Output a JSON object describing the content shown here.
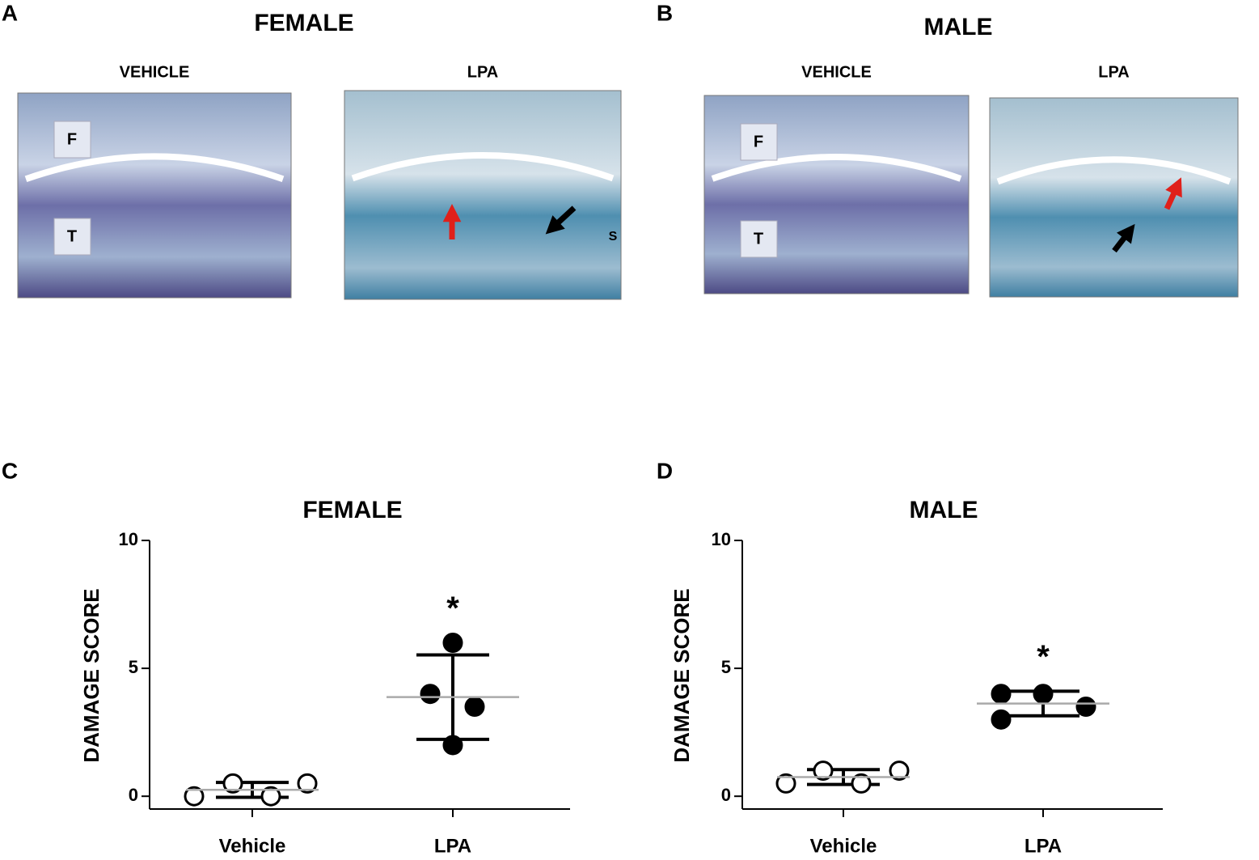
{
  "panel_labels": [
    "A",
    "B",
    "C",
    "D"
  ],
  "histology": [
    {
      "title": "FEMALE",
      "images": [
        {
          "label": "VEHICLE",
          "marks": [
            "F",
            "T"
          ]
        },
        {
          "label": "LPA",
          "marks": [
            "S"
          ]
        }
      ]
    },
    {
      "title": "MALE",
      "images": [
        {
          "label": "VEHICLE",
          "marks": [
            "F",
            "T"
          ]
        },
        {
          "label": "LPA",
          "marks": []
        }
      ]
    }
  ],
  "chart_data": [
    {
      "type": "dot",
      "title": "FEMALE",
      "y_label": "DAMAGE SCORE",
      "categories": [
        "Vehicle",
        "LPA"
      ],
      "groups": [
        {
          "values": [
            0,
            0.5,
            0,
            0.5
          ],
          "mean": 0.25,
          "sd": 0.29,
          "filled": false
        },
        {
          "values": [
            6,
            4,
            3.5,
            2
          ],
          "mean": 3.875,
          "sd": 1.65,
          "filled": true
        }
      ],
      "annotation": "*",
      "ylim": [
        -0.5,
        10
      ],
      "yticks": [
        0,
        5,
        10
      ],
      "color": "#000000",
      "mean_color": "#aaaaaa"
    },
    {
      "type": "dot",
      "title": "MALE",
      "y_label": "DAMAGE SCORE",
      "categories": [
        "Vehicle",
        "LPA"
      ],
      "groups": [
        {
          "values": [
            0.5,
            1,
            0.5,
            1
          ],
          "mean": 0.75,
          "sd": 0.29,
          "filled": false
        },
        {
          "values": [
            4,
            3,
            4,
            3.5
          ],
          "mean": 3.625,
          "sd": 0.48,
          "filled": true
        }
      ],
      "annotation": "*",
      "ylim": [
        -0.5,
        10
      ],
      "yticks": [
        0,
        5,
        10
      ],
      "color": "#000000",
      "mean_color": "#aaaaaa"
    }
  ]
}
